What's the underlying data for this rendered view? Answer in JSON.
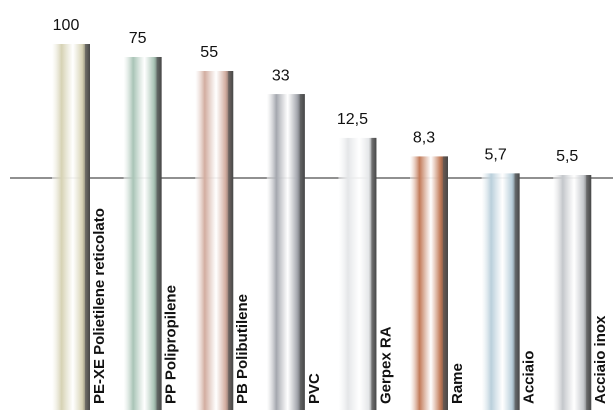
{
  "chart_data": {
    "type": "bar",
    "log_scale": true,
    "categories": [
      "PE-XE Polietilene reticolato",
      "PP Polipropilene",
      "PB Polibutilene",
      "PVC",
      "Gerpex RA",
      "Rame",
      "Acciaio",
      "Acciaio inox"
    ],
    "values": [
      100,
      75,
      55,
      33,
      12.5,
      8.3,
      5.7,
      5.5
    ],
    "value_labels": [
      "100",
      "75",
      "55",
      "33",
      "12,5",
      "8,3",
      "5,7",
      "5,5"
    ],
    "colors": [
      "#d6d2b4",
      "#a9c4b6",
      "#d2ada0",
      "#a4a7ae",
      "#e4e6e8",
      "#c27a58",
      "#b9cfdb",
      "#c4c7cb"
    ]
  }
}
